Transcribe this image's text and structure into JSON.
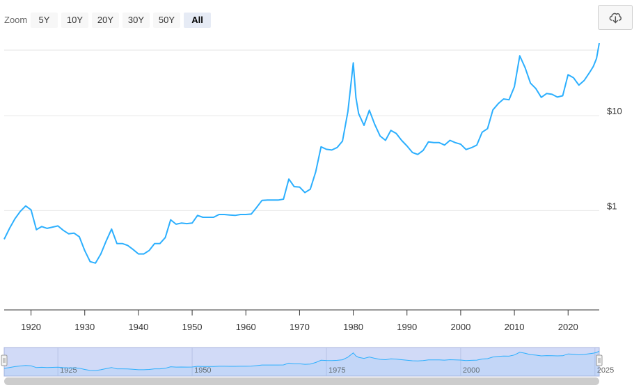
{
  "toolbar": {
    "zoom_label": "Zoom",
    "buttons": [
      {
        "label": "5Y",
        "selected": false
      },
      {
        "label": "10Y",
        "selected": false
      },
      {
        "label": "20Y",
        "selected": false
      },
      {
        "label": "30Y",
        "selected": false
      },
      {
        "label": "50Y",
        "selected": false
      },
      {
        "label": "All",
        "selected": true
      }
    ],
    "export_icon": "cloud-download-icon"
  },
  "colors": {
    "series": "#2caffe",
    "grid": "#e6e6e6",
    "navigator_mask": "#ccd6f6",
    "scrollbar": "#cccccc"
  },
  "chart_data": {
    "type": "line",
    "scale": "log",
    "grid": true,
    "xlim": [
      1915,
      2025.8
    ],
    "ylim": [
      0.09,
      60
    ],
    "x_ticks": [
      "1920",
      "1930",
      "1940",
      "1950",
      "1960",
      "1970",
      "1980",
      "1990",
      "2000",
      "2010",
      "2020"
    ],
    "y_ticks": [
      {
        "value": 1,
        "label": "$1"
      },
      {
        "value": 10,
        "label": "$10"
      },
      {
        "value": 100,
        "label": ""
      }
    ],
    "series": [
      {
        "values": [
          [
            1915,
            0.5
          ],
          [
            1916,
            0.65
          ],
          [
            1917,
            0.82
          ],
          [
            1918,
            0.98
          ],
          [
            1919,
            1.12
          ],
          [
            1920,
            1.02
          ],
          [
            1921,
            0.63
          ],
          [
            1922,
            0.68
          ],
          [
            1923,
            0.65
          ],
          [
            1924,
            0.67
          ],
          [
            1925,
            0.69
          ],
          [
            1926,
            0.62
          ],
          [
            1927,
            0.57
          ],
          [
            1928,
            0.58
          ],
          [
            1929,
            0.53
          ],
          [
            1930,
            0.38
          ],
          [
            1931,
            0.29
          ],
          [
            1932,
            0.28
          ],
          [
            1933,
            0.35
          ],
          [
            1934,
            0.48
          ],
          [
            1935,
            0.64
          ],
          [
            1936,
            0.45
          ],
          [
            1937,
            0.45
          ],
          [
            1938,
            0.43
          ],
          [
            1939,
            0.39
          ],
          [
            1940,
            0.35
          ],
          [
            1941,
            0.35
          ],
          [
            1942,
            0.38
          ],
          [
            1943,
            0.45
          ],
          [
            1944,
            0.45
          ],
          [
            1945,
            0.52
          ],
          [
            1946,
            0.8
          ],
          [
            1947,
            0.72
          ],
          [
            1948,
            0.74
          ],
          [
            1949,
            0.73
          ],
          [
            1950,
            0.74
          ],
          [
            1951,
            0.89
          ],
          [
            1952,
            0.85
          ],
          [
            1953,
            0.85
          ],
          [
            1954,
            0.85
          ],
          [
            1955,
            0.91
          ],
          [
            1956,
            0.91
          ],
          [
            1957,
            0.9
          ],
          [
            1958,
            0.89
          ],
          [
            1959,
            0.91
          ],
          [
            1960,
            0.91
          ],
          [
            1961,
            0.92
          ],
          [
            1962,
            1.08
          ],
          [
            1963,
            1.28
          ],
          [
            1964,
            1.29
          ],
          [
            1965,
            1.29
          ],
          [
            1966,
            1.29
          ],
          [
            1967,
            1.32
          ],
          [
            1968,
            2.15
          ],
          [
            1969,
            1.79
          ],
          [
            1970,
            1.77
          ],
          [
            1971,
            1.55
          ],
          [
            1972,
            1.68
          ],
          [
            1973,
            2.56
          ],
          [
            1974,
            4.7
          ],
          [
            1975,
            4.42
          ],
          [
            1976,
            4.35
          ],
          [
            1977,
            4.62
          ],
          [
            1978,
            5.4
          ],
          [
            1979,
            11.1
          ],
          [
            1980,
            36.0
          ],
          [
            1980.5,
            15.5
          ],
          [
            1981,
            10.5
          ],
          [
            1982,
            7.9
          ],
          [
            1983,
            11.4
          ],
          [
            1984,
            8.1
          ],
          [
            1985,
            6.1
          ],
          [
            1986,
            5.5
          ],
          [
            1987,
            7.0
          ],
          [
            1988,
            6.5
          ],
          [
            1989,
            5.5
          ],
          [
            1990,
            4.8
          ],
          [
            1991,
            4.1
          ],
          [
            1992,
            3.9
          ],
          [
            1993,
            4.3
          ],
          [
            1994,
            5.3
          ],
          [
            1995,
            5.2
          ],
          [
            1996,
            5.2
          ],
          [
            1997,
            4.9
          ],
          [
            1998,
            5.5
          ],
          [
            1999,
            5.2
          ],
          [
            2000,
            5.0
          ],
          [
            2001,
            4.4
          ],
          [
            2002,
            4.6
          ],
          [
            2003,
            4.9
          ],
          [
            2004,
            6.7
          ],
          [
            2005,
            7.3
          ],
          [
            2006,
            11.5
          ],
          [
            2007,
            13.4
          ],
          [
            2008,
            15.0
          ],
          [
            2009,
            14.7
          ],
          [
            2010,
            20.2
          ],
          [
            2011,
            42.7
          ],
          [
            2012,
            32.0
          ],
          [
            2013,
            22.0
          ],
          [
            2014,
            19.3
          ],
          [
            2015,
            15.6
          ],
          [
            2016,
            17.1
          ],
          [
            2017,
            16.8
          ],
          [
            2018,
            15.7
          ],
          [
            2019,
            16.2
          ],
          [
            2020,
            27.0
          ],
          [
            2021,
            25.1
          ],
          [
            2022,
            21.0
          ],
          [
            2023,
            23.5
          ],
          [
            2024,
            28.5
          ],
          [
            2024.7,
            33.0
          ],
          [
            2025.3,
            40.0
          ],
          [
            2025.8,
            58.0
          ]
        ]
      }
    ],
    "navigator": {
      "labels": [
        "1925",
        "1950",
        "1975",
        "2000",
        "2025"
      ],
      "selected_range": [
        1915,
        2025.8
      ]
    }
  }
}
